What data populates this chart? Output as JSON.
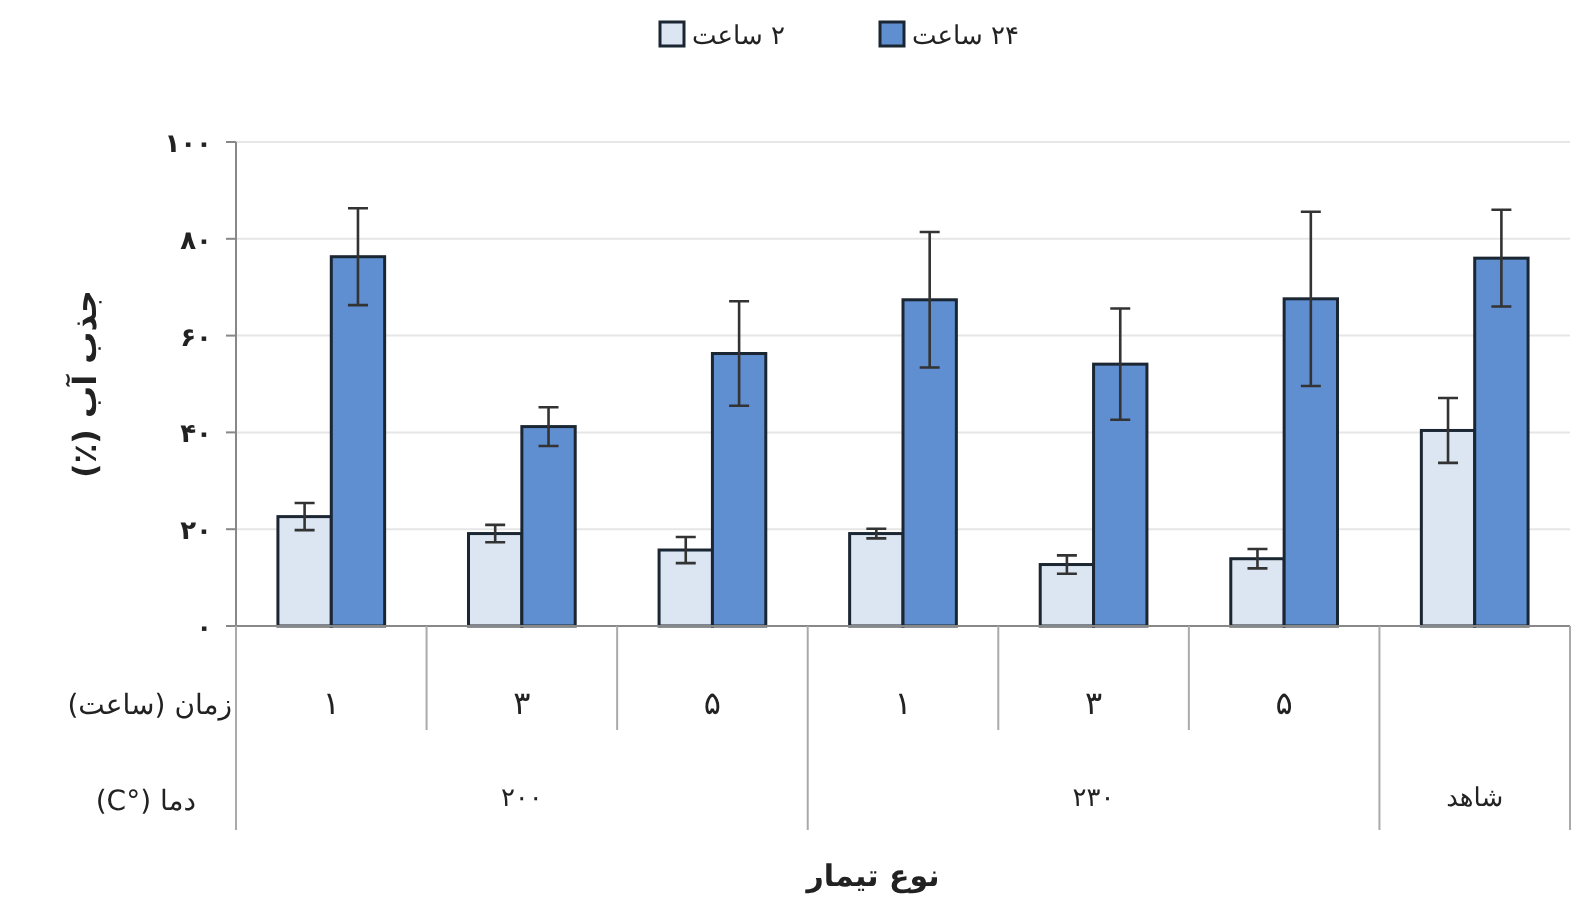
{
  "chart_data": {
    "type": "bar",
    "xlabel": "نوع تیمار",
    "ylabel": "جذب آب (٪)",
    "categories": [
      "۱",
      "۳",
      "۵",
      "۱",
      "۳",
      "۵",
      null
    ],
    "series": [
      {
        "name": "۲ ساعت",
        "color": "#dce6f2",
        "values": [
          22.6,
          19.1,
          15.7,
          19.1,
          12.7,
          13.9,
          40.4
        ],
        "errors": [
          2.8,
          1.8,
          2.7,
          1,
          1.9,
          2,
          6.7
        ]
      },
      {
        "name": "۲۴ ساعت",
        "color": "#5f8fd0",
        "values": [
          76.3,
          41.2,
          56.3,
          67.4,
          54.1,
          67.6,
          76
        ],
        "errors": [
          10,
          4,
          10.8,
          14,
          11.5,
          18,
          10
        ]
      }
    ],
    "ylim": [
      0,
      100
    ],
    "yticks": [
      {
        "value": 0,
        "label": "۰"
      },
      {
        "value": 20,
        "label": "۲۰"
      },
      {
        "value": 40,
        "label": "۴۰"
      },
      {
        "value": 60,
        "label": "۶۰"
      },
      {
        "value": 80,
        "label": "۸۰"
      },
      {
        "value": 100,
        "label": "۱۰۰"
      }
    ],
    "grid": "y",
    "legend": "top",
    "annotations": [
      "زمان (ساعت)",
      "دما (°C)",
      "۲۰۰",
      "۲۳۰",
      "شاهد"
    ]
  }
}
